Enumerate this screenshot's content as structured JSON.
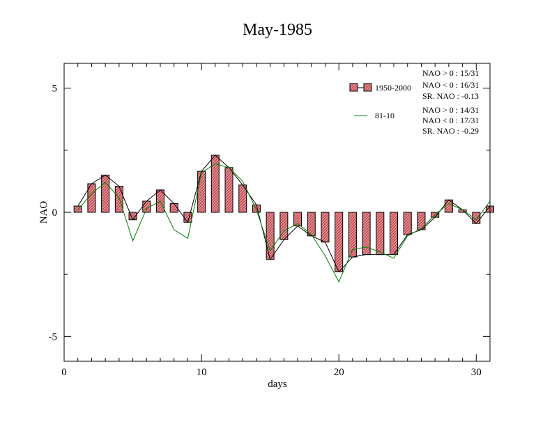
{
  "chart_data": {
    "type": "bar",
    "title": "May-1985",
    "xlabel": "days",
    "ylabel": "NAO",
    "xlim": [
      0,
      31
    ],
    "ylim": [
      -6,
      6
    ],
    "x_ticks": [
      "0",
      "10",
      "20",
      "30"
    ],
    "x_tick_values": [
      0,
      10,
      20,
      30
    ],
    "y_ticks": [
      "5",
      "0",
      "-5"
    ],
    "y_tick_values": [
      5,
      0,
      -5
    ],
    "grid": false,
    "legend_position": "top-right",
    "colors": {
      "bars": "#e8888f",
      "bar_outline": "#000000",
      "line_1950": "#000000",
      "line_8110": "#008000"
    },
    "x": [
      1,
      2,
      3,
      4,
      5,
      6,
      7,
      8,
      9,
      10,
      11,
      12,
      13,
      14,
      15,
      16,
      17,
      18,
      19,
      20,
      21,
      22,
      23,
      24,
      25,
      26,
      27,
      28,
      29,
      30,
      31
    ],
    "series": [
      {
        "name": "1950-2000",
        "style": "bars-with-line",
        "values": [
          0.25,
          1.15,
          1.5,
          1.05,
          -0.3,
          0.45,
          0.9,
          0.35,
          -0.4,
          1.65,
          2.3,
          1.8,
          1.1,
          0.3,
          -1.9,
          -1.1,
          -0.55,
          -0.95,
          -1.2,
          -2.4,
          -1.8,
          -1.7,
          -1.7,
          -1.7,
          -0.9,
          -0.7,
          -0.2,
          0.5,
          0.1,
          -0.45,
          0.25
        ]
      },
      {
        "name": "81-10",
        "style": "line",
        "values": [
          0.1,
          0.75,
          1.2,
          0.6,
          -1.15,
          0.15,
          0.45,
          -0.7,
          -1.05,
          1.6,
          1.95,
          1.8,
          1.25,
          0.1,
          -1.55,
          -0.75,
          -0.45,
          -0.9,
          -1.75,
          -2.8,
          -1.5,
          -1.4,
          -1.6,
          -1.85,
          -0.95,
          -0.65,
          -0.1,
          0.35,
          0.1,
          -0.3,
          0.45
        ]
      }
    ],
    "annotations": [
      {
        "group": "1950-2000",
        "lines": [
          "NAO > 0 :  15/31",
          "NAO < 0 :  16/31",
          "SR. NAO : -0.13"
        ]
      },
      {
        "group": "81-10",
        "lines": [
          "NAO > 0 :  14/31",
          "NAO < 0 :  17/31",
          "SR. NAO : -0.29"
        ]
      }
    ]
  }
}
